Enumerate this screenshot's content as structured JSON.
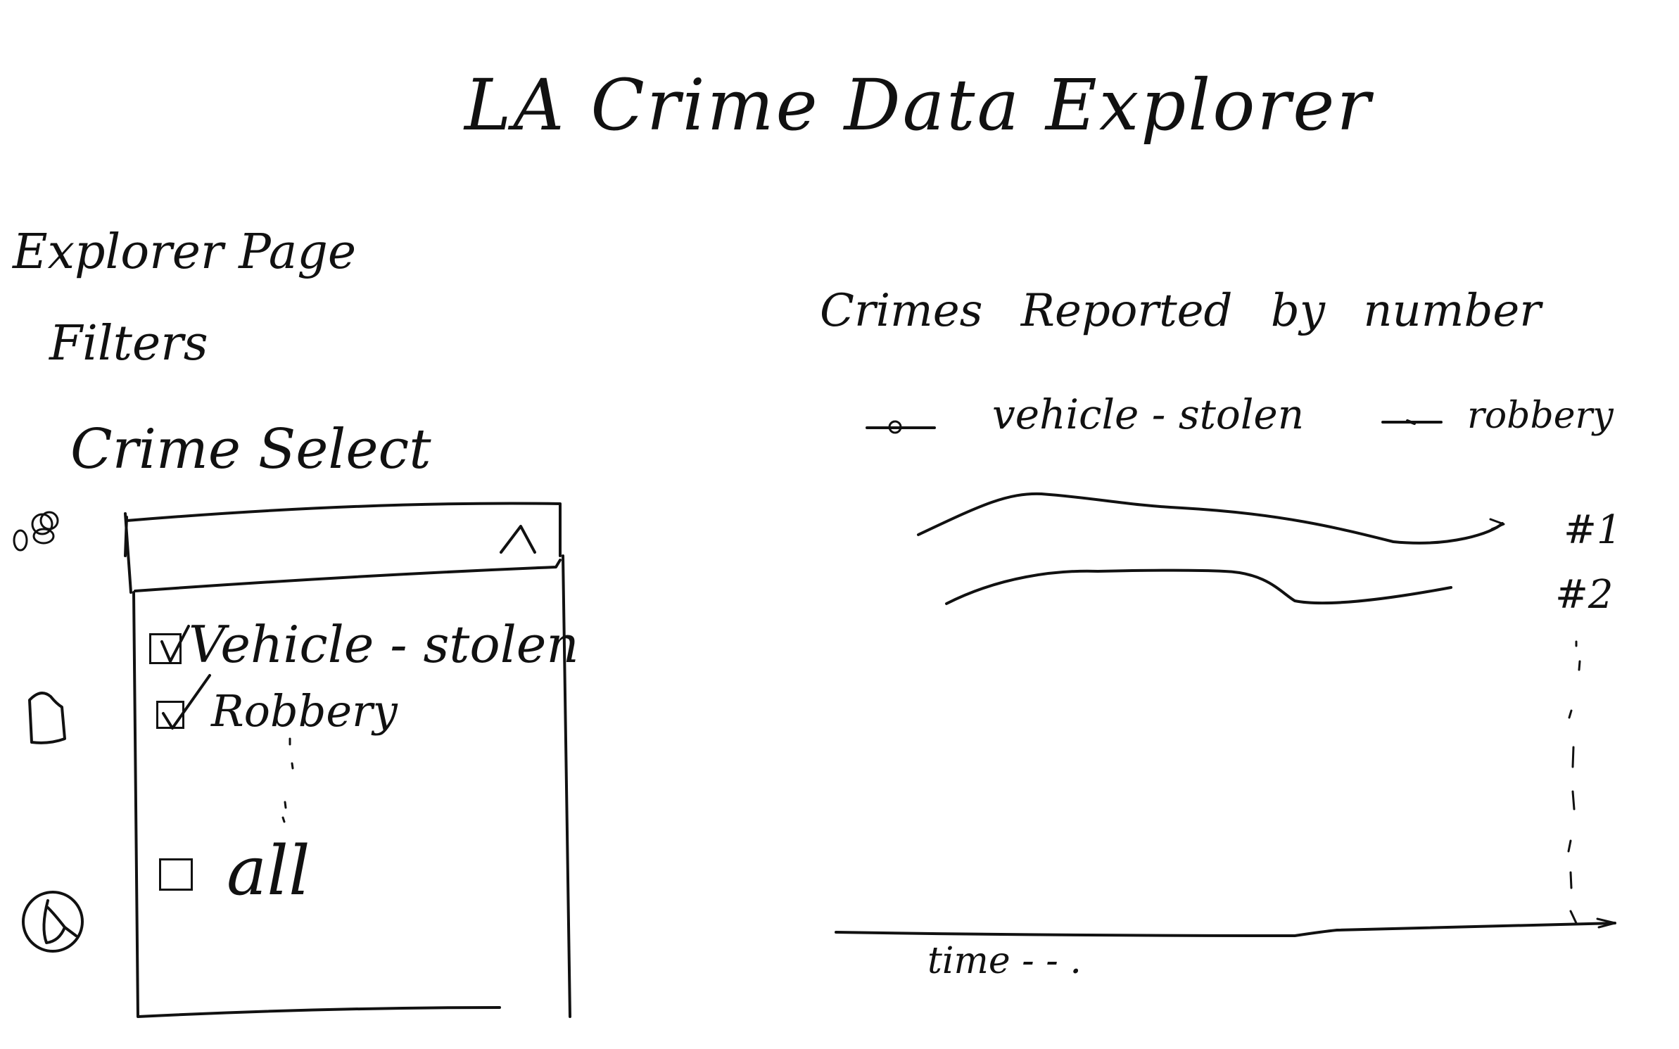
{
  "app": {
    "title": "LA Crime Data Explorer"
  },
  "sidebar": {
    "icons": [
      "people-icon",
      "map-pin-icon",
      "search-icon"
    ]
  },
  "left_panel": {
    "page_label": "Explorer Page",
    "filters_label": "Filters",
    "crime_select_label": "Crime Select",
    "dropdown": {
      "toggle_glyph": "^",
      "options": [
        {
          "label": "Vehicle - stolen",
          "checked": true
        },
        {
          "label": "Robbery",
          "checked": true
        },
        {
          "label": "all",
          "checked": false
        }
      ]
    }
  },
  "chart": {
    "title": "Crimes Reported by number",
    "legend": [
      {
        "label": "vehicle - stolen"
      },
      {
        "label": "robbery"
      }
    ],
    "ranks": [
      "#1",
      "#2"
    ],
    "xlabel": "time - - ."
  },
  "chart_data": {
    "type": "line",
    "title": "Crimes Reported by number",
    "xlabel": "time",
    "ylabel": "",
    "series": [
      {
        "name": "vehicle - stolen",
        "rank": "#1"
      },
      {
        "name": "robbery",
        "rank": "#2"
      }
    ]
  },
  "colors": {
    "ink": "#111111",
    "background": "#ffffff"
  }
}
